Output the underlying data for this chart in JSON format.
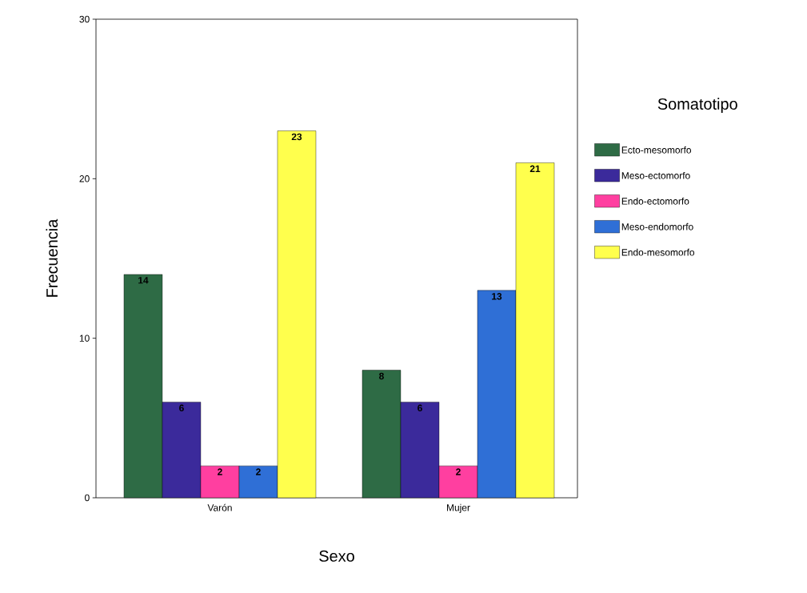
{
  "chart_data": {
    "type": "bar",
    "xlabel": "Sexo",
    "ylabel": "Frecuencia",
    "legend_title": "Somatotipo",
    "categories": [
      "Varón",
      "Mujer"
    ],
    "ylim": [
      0,
      30
    ],
    "yticks": [
      0,
      10,
      20,
      30
    ],
    "data_labels": true,
    "legend": "right",
    "grid": false,
    "series": [
      {
        "name": "Ecto-mesomorfo",
        "color": "#2e6b45",
        "values": [
          14,
          8
        ]
      },
      {
        "name": "Meso-ectomorfo",
        "color": "#3b2a9b",
        "values": [
          6,
          6
        ]
      },
      {
        "name": "Endo-ectomorfo",
        "color": "#ff3fa0",
        "values": [
          2,
          2
        ]
      },
      {
        "name": "Meso-endomorfo",
        "color": "#2f6fd6",
        "values": [
          2,
          13
        ]
      },
      {
        "name": "Endo-mesomorfo",
        "color": "#ffff4d",
        "values": [
          23,
          21
        ]
      }
    ]
  }
}
